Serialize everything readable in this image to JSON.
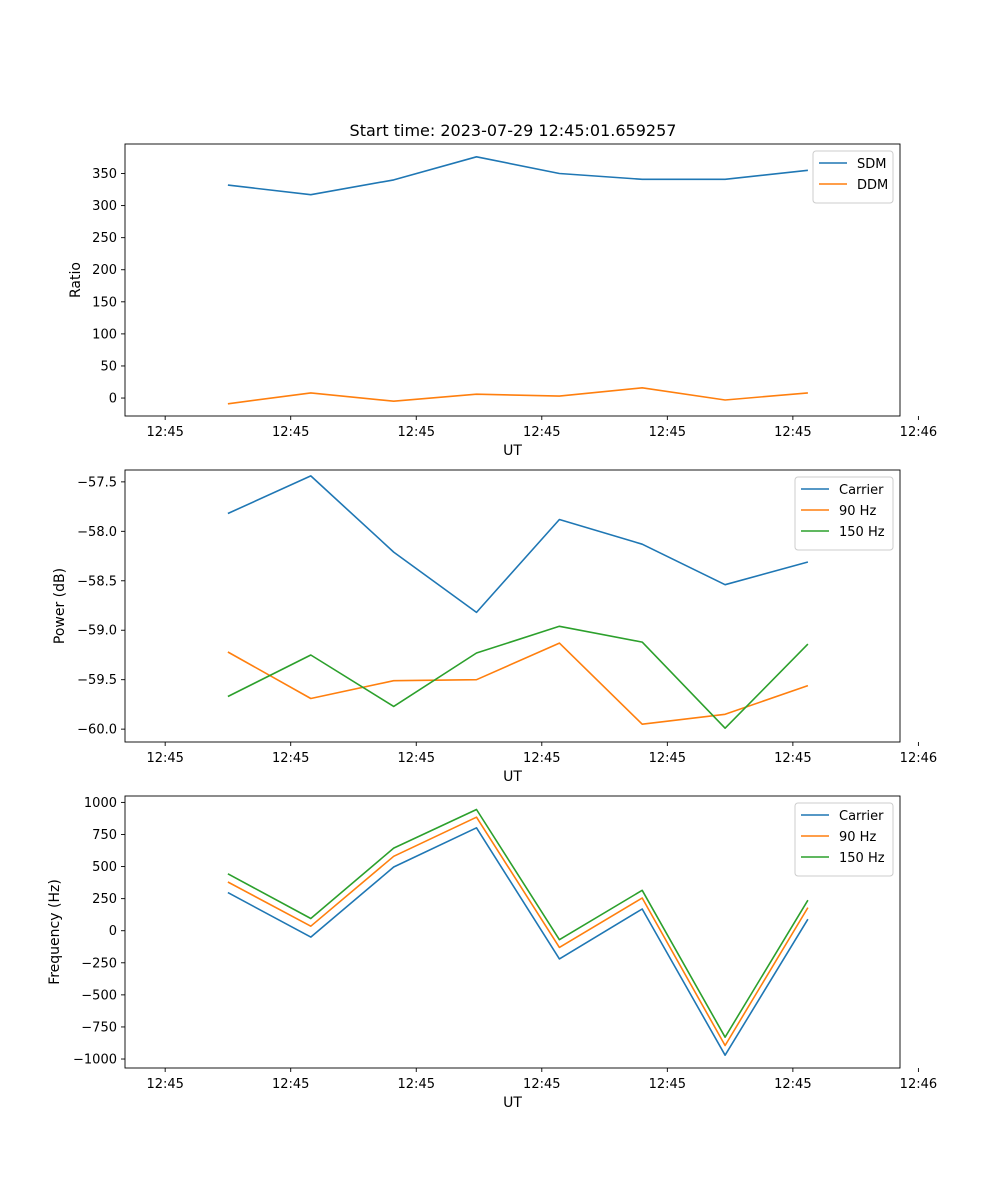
{
  "page": {
    "title": "Start time: 2023-07-29 12:45:01.659257"
  },
  "chart_data": [
    {
      "type": "line",
      "title": "Start time: 2023-07-29 12:45:01.659257",
      "xlabel": "UT",
      "ylabel": "Ratio",
      "xlim": [
        -0.48,
        8.78
      ],
      "ylim": [
        -28,
        396
      ],
      "xticks": [
        0,
        1.5,
        3,
        4.5,
        6,
        7.5,
        9
      ],
      "xtick_labels": [
        "12:45",
        "12:45",
        "12:45",
        "12:45",
        "12:45",
        "12:45",
        "12:46"
      ],
      "yticks": [
        0,
        50,
        100,
        150,
        200,
        250,
        300,
        350
      ],
      "ytick_labels": [
        "0",
        "50",
        "100",
        "150",
        "200",
        "250",
        "300",
        "350"
      ],
      "legend": "top-right",
      "x": [
        0.75,
        1.74,
        2.73,
        3.72,
        4.71,
        5.7,
        6.69,
        7.68
      ],
      "series": [
        {
          "name": "SDM",
          "color": "#1f77b4",
          "values": [
            332,
            317,
            340,
            376,
            350,
            341,
            341,
            355
          ]
        },
        {
          "name": "DDM",
          "color": "#ff7f0e",
          "values": [
            -9,
            8,
            -5,
            6,
            3,
            16,
            -3,
            8
          ]
        }
      ]
    },
    {
      "type": "line",
      "title": "",
      "xlabel": "UT",
      "ylabel": "Power (dB)",
      "xlim": [
        -0.48,
        8.78
      ],
      "ylim": [
        -60.13,
        -57.38
      ],
      "xticks": [
        0,
        1.5,
        3,
        4.5,
        6,
        7.5,
        9
      ],
      "xtick_labels": [
        "12:45",
        "12:45",
        "12:45",
        "12:45",
        "12:45",
        "12:45",
        "12:46"
      ],
      "yticks": [
        -60.0,
        -59.5,
        -59.0,
        -58.5,
        -58.0,
        -57.5
      ],
      "ytick_labels": [
        "−60.0",
        "−59.5",
        "−59.0",
        "−58.5",
        "−58.0",
        "−57.5"
      ],
      "legend": "top-right",
      "x": [
        0.75,
        1.74,
        2.73,
        3.72,
        4.71,
        5.7,
        6.69,
        7.68
      ],
      "series": [
        {
          "name": "Carrier",
          "color": "#1f77b4",
          "values": [
            -57.82,
            -57.44,
            -58.21,
            -58.82,
            -57.88,
            -58.13,
            -58.54,
            -58.31
          ]
        },
        {
          "name": "90 Hz",
          "color": "#ff7f0e",
          "values": [
            -59.22,
            -59.69,
            -59.51,
            -59.5,
            -59.13,
            -59.95,
            -59.85,
            -59.56
          ]
        },
        {
          "name": "150 Hz",
          "color": "#2ca02c",
          "values": [
            -59.67,
            -59.25,
            -59.77,
            -59.23,
            -58.96,
            -59.12,
            -59.99,
            -59.14
          ]
        }
      ]
    },
    {
      "type": "line",
      "title": "",
      "xlabel": "UT",
      "ylabel": "Frequency (Hz)",
      "xlim": [
        -0.48,
        8.78
      ],
      "ylim": [
        -1070,
        1050
      ],
      "xticks": [
        0,
        1.5,
        3,
        4.5,
        6,
        7.5,
        9
      ],
      "xtick_labels": [
        "12:45",
        "12:45",
        "12:45",
        "12:45",
        "12:45",
        "12:45",
        "12:46"
      ],
      "yticks": [
        -1000,
        -750,
        -500,
        -250,
        0,
        250,
        500,
        750,
        1000
      ],
      "ytick_labels": [
        "−1000",
        "−750",
        "−500",
        "−250",
        "0",
        "250",
        "500",
        "750",
        "1000"
      ],
      "legend": "top-right",
      "x": [
        0.75,
        1.74,
        2.73,
        3.72,
        4.71,
        5.7,
        6.69,
        7.68
      ],
      "series": [
        {
          "name": "Carrier",
          "color": "#1f77b4",
          "values": [
            297,
            -50,
            497,
            802,
            -220,
            169,
            -970,
            90
          ]
        },
        {
          "name": "90 Hz",
          "color": "#ff7f0e",
          "values": [
            380,
            35,
            580,
            885,
            -130,
            255,
            -895,
            180
          ]
        },
        {
          "name": "150 Hz",
          "color": "#2ca02c",
          "values": [
            444,
            95,
            644,
            945,
            -70,
            315,
            -830,
            238
          ]
        }
      ]
    }
  ]
}
